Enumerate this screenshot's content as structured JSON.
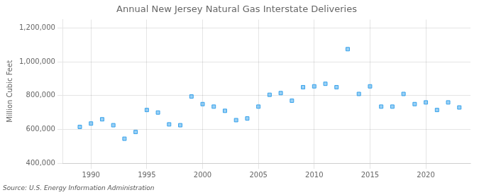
{
  "chart_data": {
    "type": "scatter",
    "title": "Annual New Jersey Natural Gas Interstate Deliveries",
    "ylabel": "Million Cubic Feet",
    "source": "Source: U.S. Energy Information Administration",
    "x": [
      1989,
      1990,
      1991,
      1992,
      1993,
      1994,
      1995,
      1996,
      1997,
      1998,
      1999,
      2000,
      2001,
      2002,
      2003,
      2004,
      2005,
      2006,
      2007,
      2008,
      2009,
      2010,
      2011,
      2012,
      2013,
      2014,
      2015,
      2016,
      2017,
      2018,
      2019,
      2020,
      2021,
      2022,
      2023
    ],
    "values": [
      615000,
      635000,
      660000,
      625000,
      545000,
      585000,
      715000,
      700000,
      630000,
      625000,
      795000,
      750000,
      735000,
      710000,
      655000,
      665000,
      735000,
      805000,
      815000,
      770000,
      850000,
      855000,
      870000,
      850000,
      1075000,
      810000,
      855000,
      735000,
      735000,
      810000,
      750000,
      760000,
      715000,
      760000,
      730000
    ],
    "xlim": [
      1987.5,
      2024
    ],
    "ylim": [
      400000,
      1250000
    ],
    "xticks": [
      1990,
      1995,
      2000,
      2005,
      2010,
      2015,
      2020
    ],
    "yticks": [
      {
        "value": 400000,
        "label": "400,000"
      },
      {
        "value": 600000,
        "label": "600,000"
      },
      {
        "value": 800000,
        "label": "800,000"
      },
      {
        "value": 1000000,
        "label": "1,000,000"
      },
      {
        "value": 1200000,
        "label": "1,200,000"
      }
    ],
    "marker": "square",
    "grid": true
  }
}
